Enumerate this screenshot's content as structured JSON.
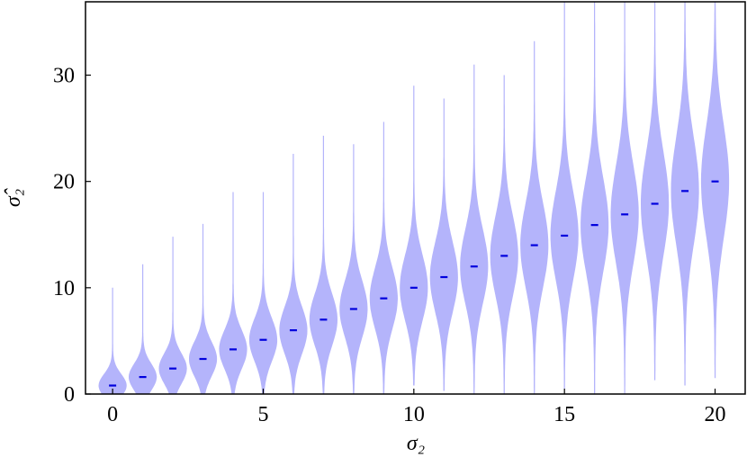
{
  "chart_data": {
    "type": "violin",
    "xlabel": "σ₂",
    "ylabel": "σ̂₂",
    "x": [
      0,
      1,
      2,
      3,
      4,
      5,
      6,
      7,
      8,
      9,
      10,
      11,
      12,
      13,
      14,
      15,
      16,
      17,
      18,
      19,
      20
    ],
    "medians": [
      0.8,
      1.6,
      2.4,
      3.3,
      4.2,
      5.1,
      6.0,
      7.0,
      8.0,
      9.0,
      10.0,
      11.0,
      12.0,
      13.0,
      14.0,
      14.9,
      15.9,
      16.9,
      17.9,
      19.1,
      20.0
    ],
    "mins": [
      0,
      0,
      0,
      0,
      0,
      0,
      0,
      0,
      0,
      0,
      0.8,
      0.3,
      0,
      0,
      0,
      0.5,
      0,
      0,
      1.3,
      0.8,
      1.5
    ],
    "maxs": [
      10,
      12.2,
      14.8,
      16,
      19,
      19,
      22.6,
      24.3,
      23.5,
      25.6,
      29,
      27.8,
      31,
      30,
      33.2,
      38,
      38,
      38,
      38,
      38,
      38
    ],
    "violin_color": "#b4b4fb",
    "median_color": "#0000dd",
    "xlim": [
      -0.9,
      21.0
    ],
    "ylim": [
      0,
      36.9
    ],
    "xticks": [
      0,
      5,
      10,
      15,
      20
    ],
    "yticks": [
      0,
      10,
      20,
      30
    ]
  }
}
